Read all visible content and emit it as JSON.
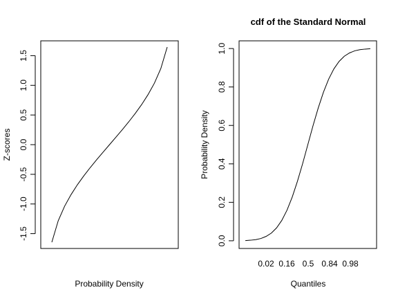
{
  "chart_data": [
    {
      "type": "line",
      "title": "",
      "xlabel": "Probability Density",
      "ylabel": "Z-scores",
      "x_tick_labels": [],
      "ylim": [
        -1.75,
        1.75
      ],
      "y_ticks": [
        -1.5,
        -1.0,
        -0.5,
        0.0,
        0.5,
        1.0,
        1.5
      ],
      "y_tick_labels": [
        "-1.5",
        "-1.0",
        "-0.5",
        "0.0",
        "0.5",
        "1.0",
        "1.5"
      ],
      "grid": false,
      "series": [
        {
          "x": [
            0.05,
            0.1,
            0.15,
            0.2,
            0.25,
            0.3,
            0.35,
            0.4,
            0.45,
            0.5,
            0.55,
            0.6,
            0.65,
            0.7,
            0.75,
            0.8,
            0.85,
            0.9,
            0.95
          ],
          "values": [
            -1.645,
            -1.282,
            -1.036,
            -0.842,
            -0.674,
            -0.524,
            -0.385,
            -0.253,
            -0.126,
            0.0,
            0.126,
            0.253,
            0.385,
            0.524,
            0.674,
            0.842,
            1.036,
            1.282,
            1.645
          ]
        }
      ]
    },
    {
      "type": "line",
      "title": "cdf of the Standard Normal",
      "xlabel": "Quantiles",
      "ylabel": "Probability Density",
      "x_tick_labels": [
        "0.02",
        "0.16",
        "0.5",
        "0.84",
        "0.98"
      ],
      "ylim": [
        -0.04,
        1.04
      ],
      "y_ticks": [
        0.0,
        0.2,
        0.4,
        0.6,
        0.8,
        1.0
      ],
      "y_tick_labels": [
        "0.0",
        "0.2",
        "0.4",
        "0.6",
        "0.8",
        "1.0"
      ],
      "grid": false,
      "series": [
        {
          "x": [
            -3.0,
            -2.75,
            -2.5,
            -2.25,
            -2.0,
            -1.75,
            -1.5,
            -1.25,
            -1.0,
            -0.75,
            -0.5,
            -0.25,
            0.0,
            0.25,
            0.5,
            0.75,
            1.0,
            1.25,
            1.5,
            1.75,
            2.0,
            2.25,
            2.5,
            2.75,
            3.0
          ],
          "values": [
            0.001,
            0.003,
            0.006,
            0.012,
            0.023,
            0.04,
            0.067,
            0.106,
            0.159,
            0.227,
            0.309,
            0.401,
            0.5,
            0.599,
            0.691,
            0.773,
            0.841,
            0.894,
            0.933,
            0.96,
            0.977,
            0.988,
            0.994,
            0.997,
            0.999
          ]
        }
      ]
    }
  ]
}
